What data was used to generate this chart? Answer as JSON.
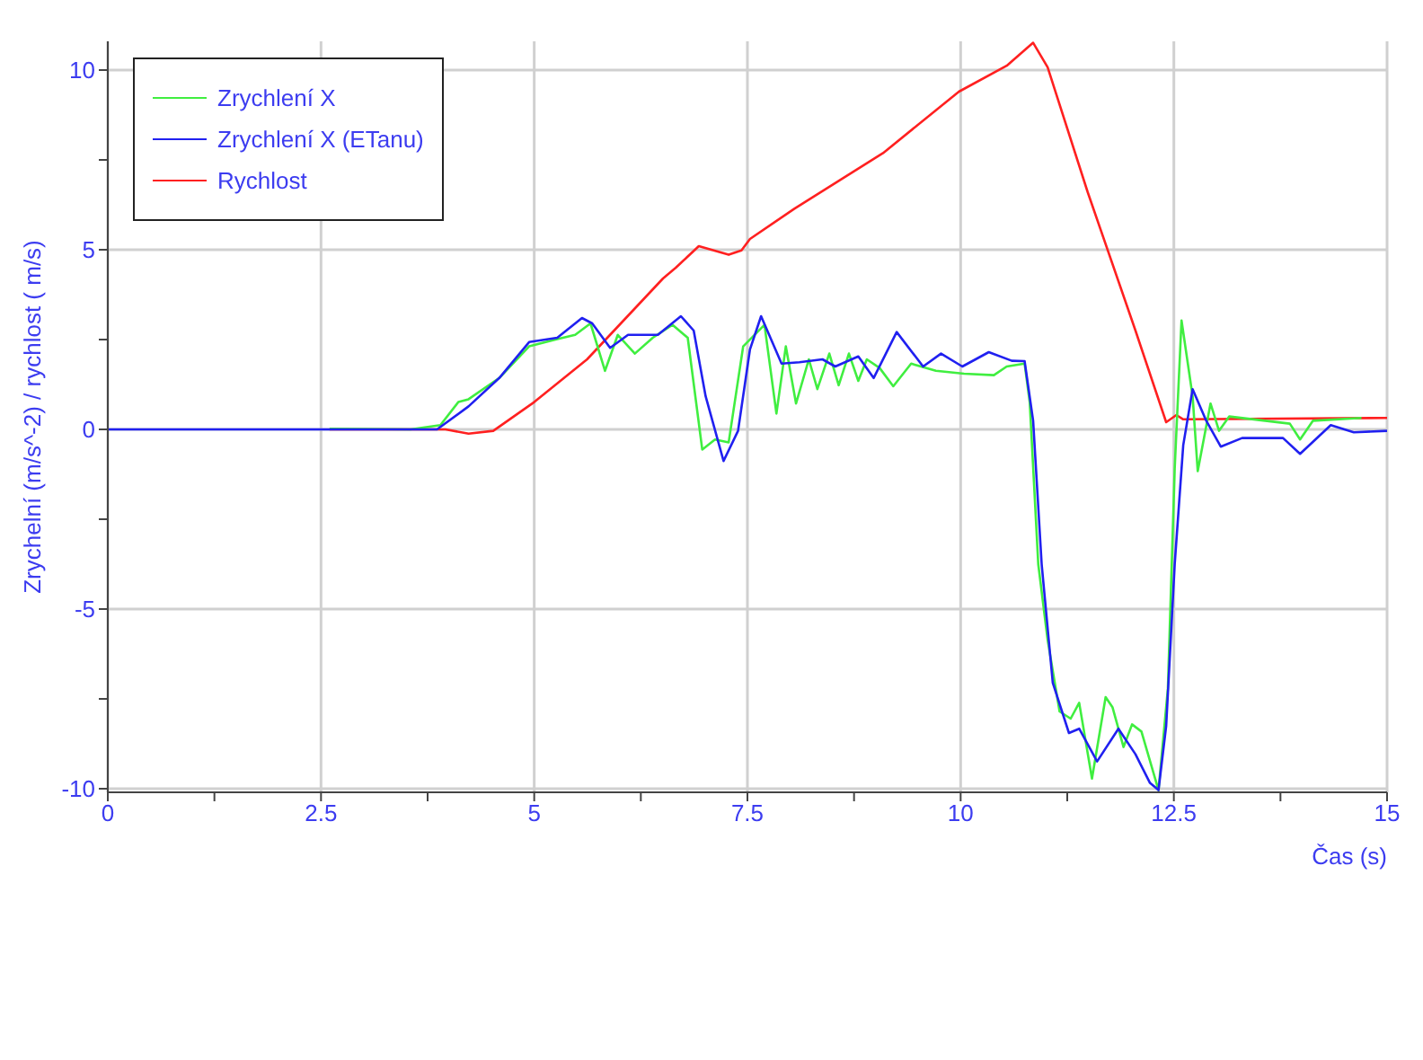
{
  "chart_data": {
    "type": "line",
    "xlabel": "Čas (s)",
    "ylabel": "Zrychelní (m/s^-2) / rychlost  ( m/s)",
    "xlim": [
      0,
      15
    ],
    "ylim": [
      -10.1,
      10.8
    ],
    "xticks": [
      0,
      {
        "value": 1.25,
        "label": null
      },
      2.5,
      {
        "value": 3.75,
        "label": null
      },
      5,
      {
        "value": 6.25,
        "label": null
      },
      7.5,
      {
        "value": 8.75,
        "label": null
      },
      10,
      {
        "value": 11.25,
        "label": null
      },
      12.5,
      {
        "value": 13.75,
        "label": null
      },
      15
    ],
    "yticks": [
      -10,
      {
        "value": -7.5,
        "label": null
      },
      -5,
      {
        "value": -2.5,
        "label": null
      },
      0,
      {
        "value": 2.5,
        "label": null
      },
      5,
      {
        "value": 7.5,
        "label": null
      },
      10
    ],
    "grid": true,
    "legend": "top left",
    "marker": "none",
    "line_style": "solid",
    "series": [
      {
        "name": "Zrychlení X",
        "color": "#40ee40",
        "x": [
          2.6,
          3.55,
          3.9,
          4.11,
          4.23,
          4.59,
          4.94,
          5.27,
          5.48,
          5.66,
          5.83,
          5.98,
          6.18,
          6.39,
          6.62,
          6.8,
          6.97,
          7.12,
          7.28,
          7.45,
          7.7,
          7.84,
          7.95,
          8.07,
          8.22,
          8.32,
          8.46,
          8.57,
          8.69,
          8.8,
          8.9,
          9.05,
          9.21,
          9.42,
          9.71,
          10.04,
          10.39,
          10.54,
          10.75,
          10.81,
          10.91,
          11.02,
          11.16,
          11.29,
          11.39,
          11.54,
          11.7,
          11.78,
          11.91,
          12.01,
          12.12,
          12.32,
          12.43,
          12.51,
          12.59,
          12.72,
          12.78,
          12.93,
          13.03,
          13.15,
          13.57,
          13.86,
          13.98,
          14.13,
          14.7
        ],
        "values": [
          0.02,
          0,
          0.12,
          0.76,
          0.84,
          1.43,
          2.31,
          2.51,
          2.63,
          2.95,
          1.63,
          2.63,
          2.11,
          2.55,
          2.91,
          2.55,
          -0.56,
          -0.28,
          -0.36,
          2.31,
          2.91,
          0.44,
          2.31,
          0.72,
          1.95,
          1.12,
          2.11,
          1.23,
          2.11,
          1.35,
          1.95,
          1.71,
          1.2,
          1.83,
          1.63,
          1.55,
          1.51,
          1.75,
          1.83,
          0.76,
          -3.75,
          -5.86,
          -7.85,
          -8.05,
          -7.61,
          -9.72,
          -7.45,
          -7.73,
          -8.84,
          -8.21,
          -8.41,
          -10.04,
          -7.21,
          -1.08,
          3.03,
          0.92,
          -1.16,
          0.72,
          -0.04,
          0.36,
          0.24,
          0.16,
          -0.28,
          0.24,
          0.32
        ]
      },
      {
        "name": "Zrychlení X (ETanu)",
        "color": "#2020f0",
        "x": [
          0,
          3.55,
          3.86,
          4.23,
          4.59,
          4.94,
          5.27,
          5.56,
          5.68,
          5.89,
          6.1,
          6.45,
          6.72,
          6.87,
          7.01,
          7.22,
          7.39,
          7.53,
          7.66,
          7.9,
          8.11,
          8.38,
          8.53,
          8.8,
          8.98,
          9.25,
          9.56,
          9.77,
          10.02,
          10.33,
          10.6,
          10.75,
          10.85,
          10.95,
          11.08,
          11.27,
          11.39,
          11.6,
          11.85,
          12.05,
          12.22,
          12.32,
          12.41,
          12.51,
          12.61,
          12.72,
          12.88,
          13.05,
          13.3,
          13.78,
          13.98,
          14.34,
          14.61,
          15
        ],
        "values": [
          0,
          0,
          0,
          0.64,
          1.43,
          2.43,
          2.55,
          3.1,
          2.95,
          2.27,
          2.63,
          2.63,
          3.15,
          2.75,
          0.92,
          -0.88,
          -0.04,
          2.23,
          3.15,
          1.83,
          1.87,
          1.95,
          1.75,
          2.03,
          1.43,
          2.71,
          1.75,
          2.11,
          1.75,
          2.15,
          1.91,
          1.9,
          0.24,
          -3.75,
          -7.05,
          -8.45,
          -8.33,
          -9.24,
          -8.33,
          -9.04,
          -9.84,
          -10.04,
          -8.25,
          -3.75,
          -0.44,
          1.12,
          0.24,
          -0.48,
          -0.24,
          -0.24,
          -0.68,
          0.12,
          -0.08,
          -0.04
        ]
      },
      {
        "name": "Rychlost",
        "color": "#ff2020",
        "x": [
          2.6,
          3.55,
          3.96,
          4.23,
          4.52,
          5.0,
          5.62,
          6.51,
          6.66,
          6.93,
          7.28,
          7.43,
          7.53,
          8.05,
          9.09,
          9.98,
          10.54,
          10.85,
          11.02,
          11.49,
          12.05,
          12.41,
          12.53,
          12.61,
          15
        ],
        "values": [
          0,
          0,
          0,
          -0.12,
          -0.04,
          0.76,
          1.95,
          4.2,
          4.5,
          5.1,
          4.86,
          4.98,
          5.3,
          6.14,
          7.69,
          9.4,
          10.12,
          10.76,
          10.08,
          6.6,
          2.75,
          0.2,
          0.4,
          0.28,
          0.32
        ]
      }
    ]
  }
}
